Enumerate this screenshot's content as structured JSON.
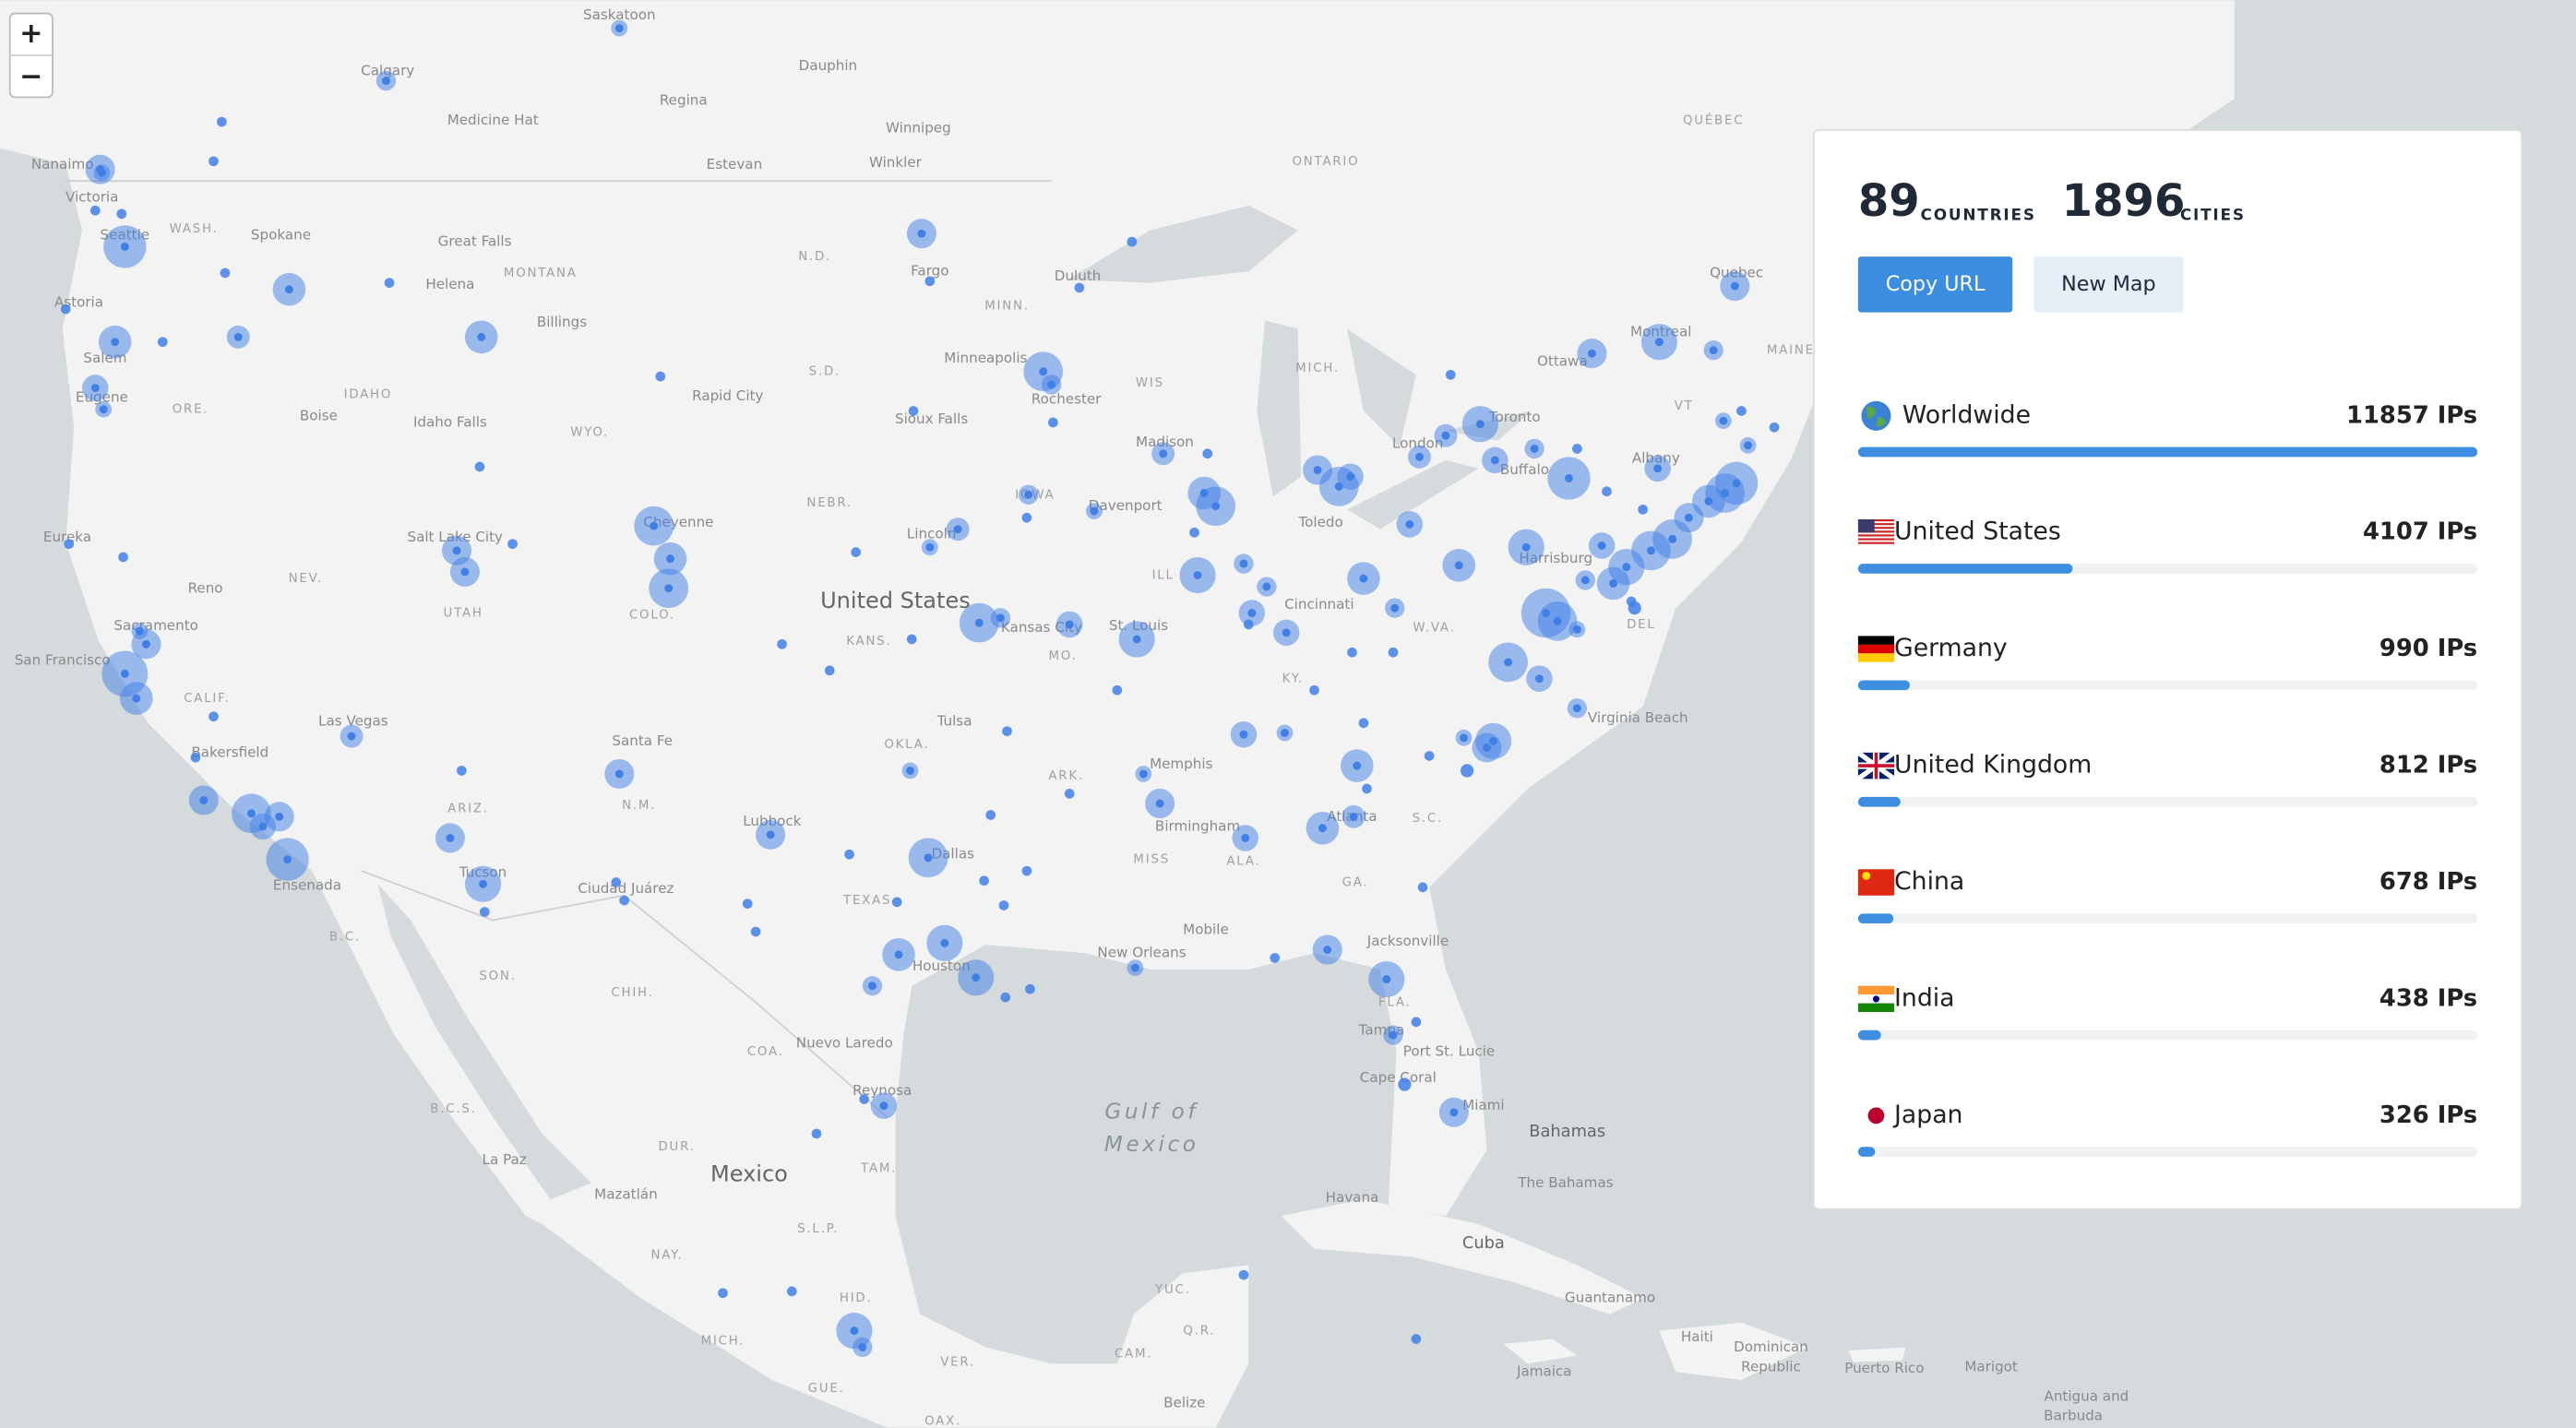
{
  "map_controls": {
    "zoom_in": "+",
    "zoom_out": "−"
  },
  "map_labels": [
    "Saskatoon",
    "Calgary",
    "Dauphin",
    "Regina",
    "Winnipeg",
    "Medicine Hat",
    "Estevan",
    "Winkler",
    "Nanaimo",
    "Victoria",
    "Seattle",
    "Spokane",
    "Great Falls",
    "Helena",
    "Billings",
    "Astoria",
    "Salem",
    "Eugene",
    "Boise",
    "Idaho Falls",
    "Rapid City",
    "Fargo",
    "Duluth",
    "Minneapolis",
    "Rochester",
    "Sioux Falls",
    "Madison",
    "Toronto",
    "Ottawa",
    "Montreal",
    "Quebec",
    "London",
    "Buffalo",
    "Albany",
    "Davenport",
    "Toledo",
    "Lincoln",
    "Cheyenne",
    "Salt Lake City",
    "Eureka",
    "Reno",
    "Sacramento",
    "San Francisco",
    "Kansas City",
    "St. Louis",
    "Cincinnati",
    "Harrisburg",
    "Las Vegas",
    "Bakersfield",
    "Tulsa",
    "Memphis",
    "Santa Fe",
    "Birmingham",
    "Lubbock",
    "Dallas",
    "Tucson",
    "Ensenada",
    "Ciudad Juárez",
    "Atlanta",
    "Mobile",
    "New Orleans",
    "Jacksonville",
    "Houston",
    "Tampa",
    "Port St. Lucie",
    "Cape Coral",
    "Miami",
    "Nuevo Laredo",
    "Reynosa",
    "Virginia Beach",
    "La Paz",
    "Mazatlán",
    "Havana",
    "Guantanamo",
    "Marigot",
    "Jamaica",
    "Belize",
    "Puerto Rico",
    "Haiti",
    "Dominican",
    "Republic",
    "Antigua and",
    "Barbuda",
    "The Bahamas",
    "Bahamas",
    "Cuba",
    "United States",
    "Mexico",
    "Gulf of",
    "Mexico",
    "WASH.",
    "MONTANA",
    "IDAHO",
    "ORE.",
    "WYO.",
    "N.D.",
    "S.D.",
    "NEBR.",
    "MINN.",
    "WIS",
    "MICH.",
    "IOWA",
    "ILL",
    "NEV.",
    "UTAH",
    "COLO.",
    "KANS.",
    "MO.",
    "CALIF.",
    "ARIZ.",
    "N.M.",
    "OKLA.",
    "ARK.",
    "TEXAS",
    "MISS",
    "ALA.",
    "GA.",
    "KY.",
    "W.VA.",
    "FLA.",
    "S.C.",
    "DEL",
    "VT",
    "ONTARIO",
    "QUÉBEC",
    "MAINE",
    "B.C.",
    "B.C.S.",
    "SON.",
    "CHIH.",
    "COA.",
    "DUR.",
    "TAM.",
    "S.L.P.",
    "NAY.",
    "MICH.",
    "HID.",
    "YUC.",
    "Q.R.",
    "CAM.",
    "VER.",
    "GUE.",
    "OAX."
  ],
  "panel": {
    "countries": 89,
    "countries_label": "COUNTRIES",
    "cities": 1896,
    "cities_label": "CITIES",
    "buttons": [
      "Copy URL",
      "New Map"
    ],
    "rows": [
      {
        "name": "Worldwide",
        "ips": 11857,
        "ips_label": "11857 IPs"
      },
      {
        "name": "United States",
        "ips": 4107,
        "ips_label": "4107 IPs"
      },
      {
        "name": "Germany",
        "ips": 990,
        "ips_label": "990 IPs"
      },
      {
        "name": "United Kingdom",
        "ips": 812,
        "ips_label": "812 IPs"
      },
      {
        "name": "China",
        "ips": 678,
        "ips_label": "678 IPs"
      },
      {
        "name": "India",
        "ips": 438,
        "ips_label": "438 IPs"
      },
      {
        "name": "Japan",
        "ips": 326,
        "ips_label": "326 IPs"
      }
    ]
  }
}
